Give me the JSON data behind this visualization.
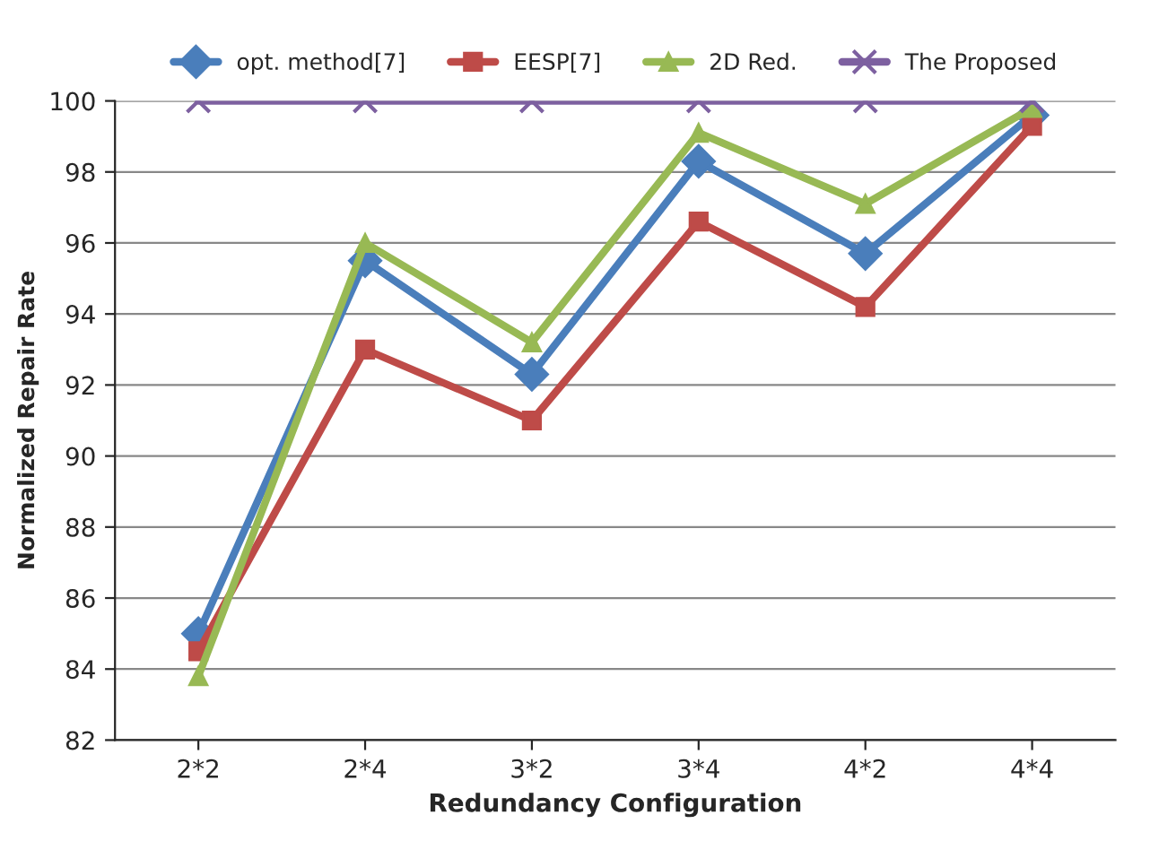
{
  "chart_data": {
    "type": "line",
    "xlabel": "Redundancy Configuration",
    "ylabel": "Normalized Repair Rate",
    "categories": [
      "2*2",
      "2*4",
      "3*2",
      "3*4",
      "4*2",
      "4*4"
    ],
    "series": [
      {
        "name": "opt. method[7]",
        "color": "#4a7ebb",
        "marker": "diamond",
        "values": [
          85.0,
          95.5,
          92.3,
          98.3,
          95.7,
          99.6
        ]
      },
      {
        "name": "EESP[7]",
        "color": "#be4b48",
        "marker": "square",
        "values": [
          84.5,
          93.0,
          91.0,
          96.6,
          94.2,
          99.3
        ]
      },
      {
        "name": "2D Red.",
        "color": "#98b954",
        "marker": "triangle",
        "values": [
          83.8,
          96.0,
          93.2,
          99.1,
          97.1,
          99.8
        ]
      },
      {
        "name": "The Proposed",
        "color": "#7d60a0",
        "marker": "cross",
        "values": [
          100,
          100,
          100,
          100,
          100,
          100
        ]
      }
    ],
    "ylim": [
      82,
      100
    ],
    "yticks": [
      82,
      84,
      86,
      88,
      90,
      92,
      94,
      96,
      98,
      100
    ],
    "grid": "y",
    "legend": "top",
    "line_style": "solid"
  }
}
